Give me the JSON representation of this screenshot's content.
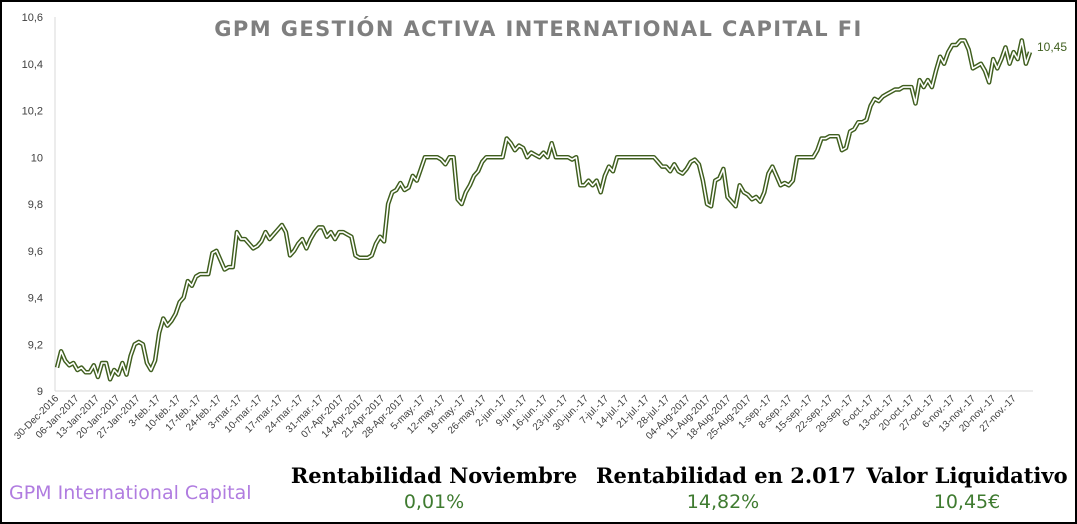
{
  "title": "GPM GESTIÓN ACTIVA INTERNATIONAL CAPITAL FI",
  "brand": "GPM International Capital",
  "kpis": [
    {
      "label": "Rentabilidad Noviembre",
      "value": "0,01%"
    },
    {
      "label": "Rentabilidad en 2.017",
      "value": "14,82%"
    },
    {
      "label": "Valor Liquidativo",
      "value": "10,45€"
    }
  ],
  "colors": {
    "line": "#3f5e1e",
    "axis": "#d9d9d9",
    "text": "#404040",
    "accent": "#3f7b30",
    "brand": "#b07ce0"
  },
  "chart_data": {
    "type": "line",
    "title": "GPM GESTIÓN ACTIVA INTERNATIONAL CAPITAL FI",
    "xlabel": "",
    "ylabel": "",
    "ylim": [
      9,
      10.6
    ],
    "yticks": [
      "9",
      "9,2",
      "9,4",
      "9,6",
      "9,8",
      "10",
      "10,2",
      "10,4",
      "10,6"
    ],
    "ytick_values": [
      9,
      9.2,
      9.4,
      9.6,
      9.8,
      10,
      10.2,
      10.4,
      10.6
    ],
    "xtick_labels": [
      "30-Dec-2016",
      "06-Jan-2017",
      "13-Jan-2017",
      "20-Jan-2017",
      "27-Jan-2017",
      "3-feb.-17",
      "10-feb.-17",
      "17-feb.-17",
      "24-feb.-17",
      "3-mar.-17",
      "10-mar.-17",
      "17-mar.-17",
      "24-mar.-17",
      "31-mar.-17",
      "07-Apr-2017",
      "14-Apr-2017",
      "21-Apr-2017",
      "28-Apr-2017",
      "5-may.-17",
      "12-may.-17",
      "19-may.-17",
      "26-may.-17",
      "2-jun.-17",
      "9-jun.-17",
      "16-jun.-17",
      "23-jun.-17",
      "30-jun.-17",
      "7-jul.-17",
      "14-jul.-17",
      "21-jul.-17",
      "28-jul.-17",
      "04-Aug-2017",
      "11-Aug-2017",
      "18-Aug-2017",
      "25-Aug-2017",
      "1-sep.-17",
      "8-sep.-17",
      "15-sep.-17",
      "22-sep.-17",
      "29-sep.-17",
      "6-oct.-17",
      "13-oct.-17",
      "20-oct.-17",
      "27-oct.-17",
      "6-nov.-17",
      "13-nov.-17",
      "20-nov.-17",
      "27-nov.-17"
    ],
    "grid": false,
    "legend": "none",
    "end_label": "10,45",
    "series": [
      {
        "values": [
          9.1,
          9.17,
          9.13,
          9.11,
          9.12,
          9.09,
          9.1,
          9.08,
          9.08,
          9.11,
          9.06,
          9.12,
          9.12,
          9.05,
          9.09,
          9.07,
          9.12,
          9.07,
          9.15,
          9.2,
          9.21,
          9.2,
          9.12,
          9.09,
          9.13,
          9.25,
          9.31,
          9.28,
          9.3,
          9.33,
          9.38,
          9.4,
          9.47,
          9.45,
          9.49,
          9.5,
          9.5,
          9.5,
          9.59,
          9.6,
          9.56,
          9.52,
          9.53,
          9.53,
          9.68,
          9.65,
          9.65,
          9.63,
          9.61,
          9.62,
          9.64,
          9.68,
          9.65,
          9.67,
          9.69,
          9.71,
          9.68,
          9.58,
          9.6,
          9.63,
          9.65,
          9.61,
          9.65,
          9.68,
          9.7,
          9.7,
          9.66,
          9.68,
          9.65,
          9.68,
          9.68,
          9.67,
          9.66,
          9.58,
          9.57,
          9.57,
          9.57,
          9.58,
          9.63,
          9.66,
          9.64,
          9.8,
          9.85,
          9.86,
          9.89,
          9.86,
          9.87,
          9.92,
          9.9,
          9.95,
          10.0,
          10.0,
          10.0,
          10.0,
          9.99,
          9.97,
          10.0,
          10.0,
          9.82,
          9.8,
          9.85,
          9.88,
          9.92,
          9.94,
          9.98,
          10.0,
          10.0,
          10.0,
          10.0,
          10.0,
          10.08,
          10.06,
          10.03,
          10.05,
          10.04,
          10.0,
          10.02,
          10.01,
          10.0,
          10.02,
          10.0,
          10.06,
          10.0,
          10.0,
          10.0,
          10.0,
          9.99,
          10.0,
          9.88,
          9.88,
          9.9,
          9.88,
          9.9,
          9.85,
          9.92,
          9.96,
          9.94,
          10.0,
          10.0,
          10.0,
          10.0,
          10.0,
          10.0,
          10.0,
          10.0,
          10.0,
          10.0,
          9.98,
          9.96,
          9.96,
          9.94,
          9.97,
          9.94,
          9.93,
          9.95,
          9.98,
          9.99,
          9.97,
          9.9,
          9.8,
          9.79,
          9.9,
          9.91,
          9.95,
          9.83,
          9.81,
          9.79,
          9.88,
          9.85,
          9.84,
          9.82,
          9.83,
          9.81,
          9.85,
          9.93,
          9.96,
          9.92,
          9.88,
          9.89,
          9.88,
          9.9,
          10.0,
          10.0,
          10.0,
          10.0,
          10.0,
          10.03,
          10.08,
          10.08,
          10.09,
          10.09,
          10.09,
          10.03,
          10.04,
          10.11,
          10.12,
          10.15,
          10.15,
          10.16,
          10.22,
          10.25,
          10.24,
          10.26,
          10.27,
          10.28,
          10.29,
          10.29,
          10.3,
          10.3,
          10.3,
          10.23,
          10.33,
          10.3,
          10.33,
          10.3,
          10.37,
          10.43,
          10.4,
          10.45,
          10.48,
          10.48,
          10.5,
          10.5,
          10.46,
          10.38,
          10.39,
          10.4,
          10.37,
          10.32,
          10.42,
          10.38,
          10.42,
          10.47,
          10.4,
          10.45,
          10.42,
          10.5,
          10.4,
          10.45
        ]
      }
    ]
  }
}
